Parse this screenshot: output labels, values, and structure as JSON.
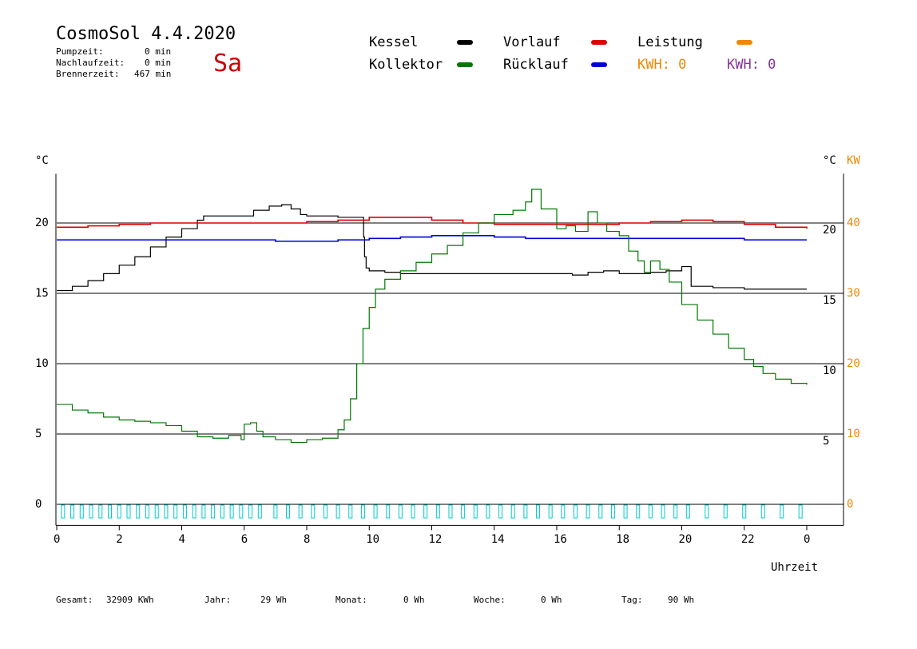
{
  "header": {
    "title": "CosmoSol 4.4.2020",
    "day": "Sa",
    "pumpzeit_label": "Pumpzeit:",
    "pumpzeit_value": "0 min",
    "nachlauf_label": "Nachlaufzeit:",
    "nachlauf_value": "0 min",
    "brenner_label": "Brennerzeit:",
    "brenner_value": "467 min"
  },
  "legend": {
    "kessel": "Kessel",
    "kollektor": "Kollektor",
    "vorlauf": "Vorlauf",
    "ruecklauf": "Rücklauf",
    "leistung": "Leistung",
    "kwh1": "KWH: 0",
    "kwh2": "KWH: 0"
  },
  "colors": {
    "kessel": "#000000",
    "kollektor": "#007700",
    "vorlauf": "#dd0000",
    "ruecklauf": "#0000dd",
    "leistung": "#ee8800",
    "kwh2": "#883399",
    "pump": "#00cccc"
  },
  "footer": {
    "gesamt_label": "Gesamt:",
    "gesamt_value": "32909 KWh",
    "jahr_label": "Jahr:",
    "jahr_value": "29 Wh",
    "monat_label": "Monat:",
    "monat_value": "0 Wh",
    "woche_label": "Woche:",
    "woche_value": "0 Wh",
    "tag_label": "Tag:",
    "tag_value": "90 Wh"
  },
  "chart_data": {
    "type": "line",
    "xlabel": "Uhrzeit",
    "ylabel_left": "°C",
    "ylabel_right": [
      "°C",
      "KW"
    ],
    "xlim": [
      0,
      24
    ],
    "ylim": [
      -1.5,
      23.5
    ],
    "x_ticks": [
      "0",
      "2",
      "4",
      "6",
      "8",
      "10",
      "12",
      "14",
      "16",
      "18",
      "20",
      "22",
      "0"
    ],
    "y_ticks_left": [
      "0",
      "5",
      "10",
      "15",
      "20"
    ],
    "y_ticks_right_celsius": [
      "5",
      "10",
      "15",
      "20"
    ],
    "y_ticks_right_kw": [
      "0",
      "10",
      "20",
      "30",
      "40"
    ],
    "gridlines_y": [
      0,
      5,
      10,
      15,
      20
    ],
    "series": [
      {
        "name": "Kessel",
        "color": "#000000",
        "x": [
          0,
          0.5,
          1,
          1.5,
          2,
          2.5,
          3,
          3.5,
          4,
          4.5,
          4.7,
          5,
          6,
          6.3,
          6.8,
          7.2,
          7.5,
          7.8,
          8,
          9,
          9.8,
          9.82,
          9.85,
          9.9,
          10,
          10.5,
          11,
          12,
          13,
          14,
          15,
          16,
          16.5,
          17,
          17.5,
          18,
          19,
          19.5,
          20,
          20.3,
          21,
          22,
          23,
          24
        ],
        "y": [
          15.2,
          15.5,
          15.9,
          16.4,
          17.0,
          17.6,
          18.3,
          19.0,
          19.6,
          20.2,
          20.5,
          20.5,
          20.5,
          20.9,
          21.2,
          21.3,
          21.0,
          20.6,
          20.5,
          20.4,
          20.4,
          19.0,
          17.6,
          16.8,
          16.6,
          16.5,
          16.4,
          16.4,
          16.4,
          16.4,
          16.4,
          16.4,
          16.3,
          16.5,
          16.6,
          16.4,
          16.5,
          16.6,
          16.9,
          15.5,
          15.4,
          15.3,
          15.3,
          15.3
        ]
      },
      {
        "name": "Vorlauf",
        "color": "#dd0000",
        "x": [
          0,
          1,
          2,
          3,
          4,
          5,
          6,
          7,
          8,
          9,
          10,
          11,
          12,
          13,
          14,
          15,
          16,
          17,
          18,
          19,
          20,
          21,
          22,
          23,
          24
        ],
        "y": [
          19.7,
          19.8,
          19.9,
          20.0,
          20.0,
          20.0,
          20.0,
          20.0,
          20.1,
          20.2,
          20.4,
          20.4,
          20.2,
          20.0,
          19.9,
          19.9,
          19.9,
          19.9,
          20.0,
          20.1,
          20.2,
          20.1,
          19.9,
          19.7,
          19.6
        ]
      },
      {
        "name": "Rücklauf",
        "color": "#0000dd",
        "x": [
          0,
          2,
          4,
          6,
          7,
          8,
          9,
          10,
          11,
          12,
          13,
          14,
          15,
          16,
          17,
          18,
          19,
          20,
          21,
          22,
          23,
          24
        ],
        "y": [
          18.8,
          18.8,
          18.8,
          18.8,
          18.7,
          18.7,
          18.8,
          18.9,
          19.0,
          19.1,
          19.1,
          19.0,
          18.9,
          18.9,
          18.9,
          18.9,
          18.9,
          18.9,
          18.9,
          18.8,
          18.8,
          18.8
        ]
      },
      {
        "name": "Kollektor",
        "color": "#007700",
        "x": [
          0,
          0.5,
          1,
          1.5,
          2,
          2.5,
          3,
          3.5,
          4,
          4.5,
          5,
          5.5,
          5.9,
          6,
          6.2,
          6.4,
          6.6,
          7,
          7.5,
          8,
          8.5,
          9,
          9.2,
          9.4,
          9.6,
          9.8,
          10,
          10.2,
          10.5,
          11,
          11.5,
          12,
          12.5,
          13,
          13.5,
          14,
          14.3,
          14.6,
          15,
          15.2,
          15.5,
          16,
          16.3,
          16.6,
          17,
          17.3,
          17.6,
          18,
          18.3,
          18.6,
          18.8,
          19,
          19.3,
          19.6,
          20,
          20.5,
          21,
          21.5,
          22,
          22.3,
          22.6,
          23,
          23.5,
          24
        ],
        "y": [
          7.1,
          6.7,
          6.5,
          6.2,
          6.0,
          5.9,
          5.8,
          5.6,
          5.2,
          4.8,
          4.7,
          4.9,
          4.6,
          5.7,
          5.8,
          5.2,
          4.8,
          4.6,
          4.4,
          4.6,
          4.7,
          5.3,
          6.0,
          7.5,
          10.0,
          12.5,
          14.0,
          15.3,
          16.0,
          16.6,
          17.2,
          17.8,
          18.4,
          19.3,
          20.0,
          20.6,
          20.6,
          20.9,
          21.5,
          22.4,
          21.0,
          19.6,
          19.8,
          19.4,
          20.8,
          20.0,
          19.4,
          19.1,
          18.0,
          17.3,
          16.5,
          17.3,
          16.7,
          15.8,
          14.2,
          13.1,
          12.1,
          11.1,
          10.3,
          9.8,
          9.3,
          8.9,
          8.6,
          8.5
        ]
      }
    ],
    "pump_pulse_hours": [
      0.2,
      0.5,
      0.8,
      1.1,
      1.4,
      1.7,
      2.0,
      2.3,
      2.6,
      2.9,
      3.2,
      3.5,
      3.8,
      4.1,
      4.4,
      4.7,
      5.0,
      5.3,
      5.6,
      5.9,
      6.2,
      6.5,
      7.0,
      7.4,
      7.8,
      8.2,
      8.6,
      9.0,
      9.4,
      9.8,
      10.2,
      10.6,
      11.0,
      11.4,
      11.8,
      12.2,
      12.6,
      13.0,
      13.4,
      13.8,
      14.2,
      14.6,
      15.0,
      15.4,
      15.8,
      16.2,
      16.6,
      17.0,
      17.4,
      17.8,
      18.2,
      18.6,
      19.0,
      19.4,
      19.8,
      20.2,
      20.8,
      21.4,
      22.0,
      22.6,
      23.2,
      23.8
    ]
  }
}
